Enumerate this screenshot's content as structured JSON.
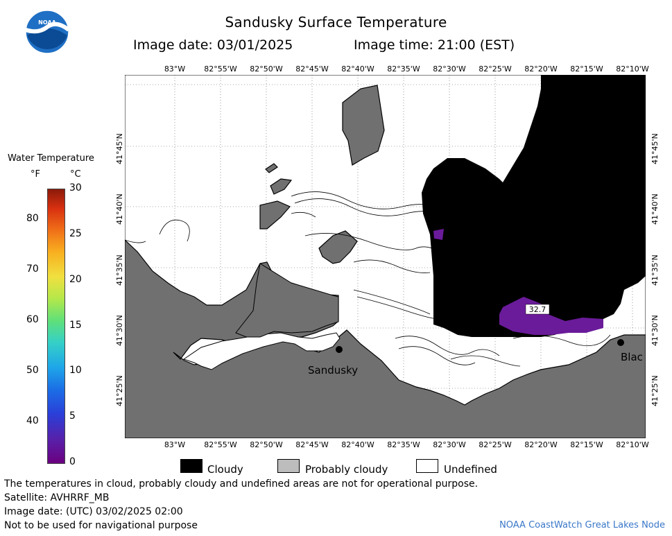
{
  "header": {
    "title": "Sandusky Surface Temperature",
    "image_date": "Image date: 03/01/2025",
    "image_time": "Image time: 21:00 (EST)"
  },
  "logo": {
    "text": "NOAA"
  },
  "colorbar": {
    "title": "Water Temperature",
    "unit_f": "°F",
    "unit_c": "°C",
    "f_ticks": [
      "40",
      "50",
      "60",
      "70",
      "80"
    ],
    "c_ticks": [
      "0",
      "5",
      "10",
      "15",
      "20",
      "25",
      "30"
    ]
  },
  "map": {
    "lon_ticks": [
      "83°W",
      "82°55'W",
      "82°50'W",
      "82°45'W",
      "82°40'W",
      "82°35'W",
      "82°30'W",
      "82°25'W",
      "82°20'W",
      "82°15'W",
      "82°10'W"
    ],
    "lat_ticks": [
      "41°45'N",
      "41°40'N",
      "41°35'N",
      "41°30'N",
      "41°25'N"
    ],
    "cities": [
      {
        "name": "Sandusky"
      },
      {
        "name": "Blac"
      }
    ],
    "temperature_label": "32.7",
    "colors": {
      "land": "#707070",
      "cloud": "#000000",
      "water": "#ffffff",
      "cold_water": "#6a1b9a"
    }
  },
  "legend": {
    "cloudy": "Cloudy",
    "probably_cloudy": "Probably cloudy",
    "undefined": "Undefined"
  },
  "footer": {
    "note": "The temperatures in cloud, probably cloudy and undefined areas are not for operational purpose.",
    "satellite": "Satellite: AVHRRF_MB",
    "utc_date": "Image date: (UTC) 03/02/2025  02:00",
    "nav": "Not to be used for navigational purpose",
    "credit": "NOAA CoastWatch Great Lakes Node"
  }
}
